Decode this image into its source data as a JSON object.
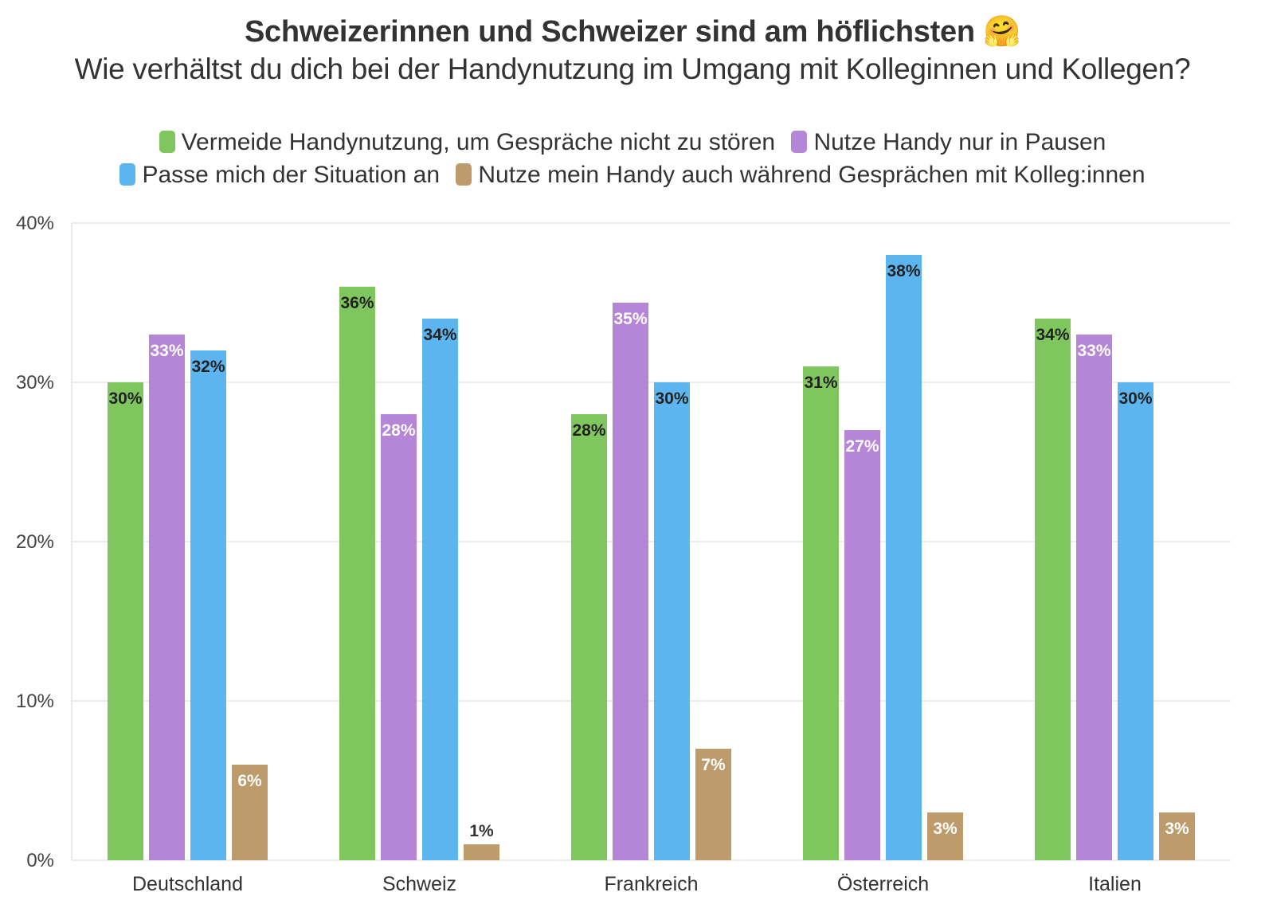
{
  "chart_data": {
    "type": "bar",
    "title": "Schweizerinnen und Schweizer sind am höflichsten",
    "title_emoji": "🤗",
    "subtitle": "Wie verhältst du dich bei der Handynutzung im Umgang mit Kolleginnen und Kollegen?",
    "categories": [
      "Deutschland",
      "Schweiz",
      "Frankreich",
      "Österreich",
      "Italien"
    ],
    "series": [
      {
        "name": "Vermeide Handynutzung, um Gespräche nicht zu stören",
        "color": "#80c65f",
        "label_color": "#222222",
        "values": [
          30,
          36,
          28,
          31,
          34
        ]
      },
      {
        "name": "Nutze Handy nur in Pausen",
        "color": "#b585d8",
        "label_color": "#ffffff",
        "values": [
          33,
          28,
          35,
          27,
          33
        ]
      },
      {
        "name": "Passe mich der Situation an",
        "color": "#5db5f0",
        "label_color": "#222222",
        "values": [
          32,
          34,
          30,
          38,
          30
        ]
      },
      {
        "name": "Nutze mein Handy auch während Gesprächen mit Kolleg:innen",
        "color": "#bd9b6b",
        "label_color": "#ffffff",
        "values": [
          6,
          1,
          7,
          3,
          3
        ]
      }
    ],
    "value_suffix": "%",
    "ylim": [
      0,
      40
    ],
    "yticks": [
      0,
      10,
      20,
      30,
      40
    ],
    "ytick_labels": [
      "0%",
      "10%",
      "20%",
      "30%",
      "40%"
    ],
    "grid": true,
    "legend_position": "top",
    "xlabel": "",
    "ylabel": ""
  }
}
